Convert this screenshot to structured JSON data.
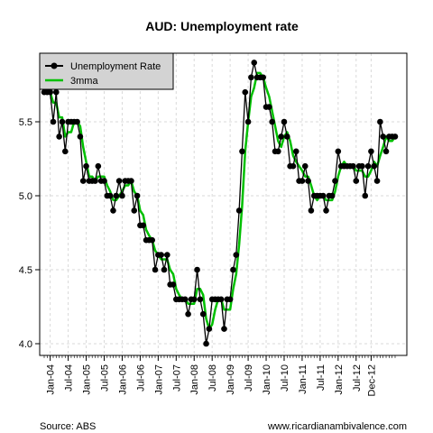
{
  "chart_data": {
    "type": "line",
    "title": "AUD: Unemployment rate",
    "xlabel": "",
    "ylabel": "",
    "ylim": [
      3.95,
      5.95
    ],
    "y_ticks": [
      4.0,
      4.5,
      5.0,
      5.5
    ],
    "y_tick_labels": [
      "4.0",
      "4.5",
      "5.0",
      "5.5"
    ],
    "x_start": "2003-11",
    "x_tick_labels": [
      "Jan-04",
      "Jul-04",
      "Jan-05",
      "Jul-05",
      "Jan-06",
      "Jul-06",
      "Jan-07",
      "Jul-07",
      "Jan-08",
      "Jul-08",
      "Jan-09",
      "Jul-09",
      "Jan-10",
      "Jul-10",
      "Jan-11",
      "Jul-11",
      "Jan-12",
      "Jul-12",
      "Dec-12"
    ],
    "x_tick_dates": [
      "2004-01",
      "2004-07",
      "2005-01",
      "2005-07",
      "2006-01",
      "2006-07",
      "2007-01",
      "2007-07",
      "2008-01",
      "2008-07",
      "2009-01",
      "2009-07",
      "2010-01",
      "2010-07",
      "2011-01",
      "2011-07",
      "2012-01",
      "2012-07",
      "2012-12"
    ],
    "grid": true,
    "legend_position": "top-left",
    "series": [
      {
        "name": "Unemployment Rate",
        "color": "#000000",
        "marker": "circle",
        "values": [
          5.7,
          5.7,
          5.7,
          5.5,
          5.7,
          5.4,
          5.5,
          5.3,
          5.5,
          5.5,
          5.5,
          5.5,
          5.4,
          5.1,
          5.2,
          5.1,
          5.1,
          5.1,
          5.2,
          5.1,
          5.1,
          5.0,
          5.0,
          4.9,
          5.0,
          5.1,
          5.0,
          5.1,
          5.1,
          5.1,
          4.9,
          5.0,
          4.8,
          4.8,
          4.7,
          4.7,
          4.7,
          4.5,
          4.6,
          4.6,
          4.5,
          4.6,
          4.4,
          4.4,
          4.3,
          4.3,
          4.3,
          4.3,
          4.2,
          4.3,
          4.3,
          4.5,
          4.3,
          4.2,
          4.0,
          4.1,
          4.3,
          4.3,
          4.3,
          4.3,
          4.1,
          4.3,
          4.3,
          4.5,
          4.6,
          4.9,
          5.3,
          5.7,
          5.5,
          5.8,
          5.9,
          5.8,
          5.8,
          5.8,
          5.6,
          5.6,
          5.5,
          5.3,
          5.3,
          5.4,
          5.5,
          5.4,
          5.2,
          5.2,
          5.3,
          5.1,
          5.1,
          5.2,
          5.1,
          4.9,
          5.0,
          5.0,
          5.0,
          5.0,
          4.9,
          5.0,
          5.0,
          5.1,
          5.3,
          5.2,
          5.2,
          5.2,
          5.2,
          5.2,
          5.1,
          5.2,
          5.2,
          5.0,
          5.2,
          5.3,
          5.2,
          5.1,
          5.5,
          5.4,
          5.3,
          5.4,
          5.4,
          5.4
        ]
      },
      {
        "name": "3mma",
        "color": "#00c000",
        "marker": "none",
        "values": [
          5.7,
          5.7,
          5.7,
          5.63,
          5.63,
          5.53,
          5.53,
          5.4,
          5.43,
          5.43,
          5.5,
          5.5,
          5.47,
          5.33,
          5.23,
          5.13,
          5.13,
          5.1,
          5.13,
          5.13,
          5.13,
          5.07,
          5.03,
          4.97,
          4.97,
          5.0,
          5.03,
          5.07,
          5.07,
          5.1,
          5.03,
          5.0,
          4.9,
          4.87,
          4.77,
          4.73,
          4.7,
          4.63,
          4.6,
          4.57,
          4.57,
          4.57,
          4.5,
          4.47,
          4.37,
          4.33,
          4.3,
          4.3,
          4.27,
          4.27,
          4.27,
          4.37,
          4.37,
          4.33,
          4.17,
          4.1,
          4.13,
          4.23,
          4.3,
          4.3,
          4.23,
          4.23,
          4.23,
          4.37,
          4.47,
          4.67,
          4.93,
          5.3,
          5.5,
          5.67,
          5.73,
          5.83,
          5.83,
          5.8,
          5.73,
          5.67,
          5.57,
          5.47,
          5.37,
          5.33,
          5.4,
          5.43,
          5.37,
          5.27,
          5.23,
          5.2,
          5.17,
          5.13,
          5.13,
          5.07,
          5.0,
          4.97,
          5.0,
          5.0,
          4.97,
          4.97,
          4.97,
          5.03,
          5.13,
          5.2,
          5.23,
          5.2,
          5.2,
          5.2,
          5.17,
          5.17,
          5.17,
          5.13,
          5.13,
          5.17,
          5.23,
          5.2,
          5.27,
          5.33,
          5.4,
          5.37,
          5.37,
          5.4
        ]
      }
    ],
    "captions": {
      "source": "Source: ABS",
      "website": "www.ricardianambivalence.com"
    }
  }
}
